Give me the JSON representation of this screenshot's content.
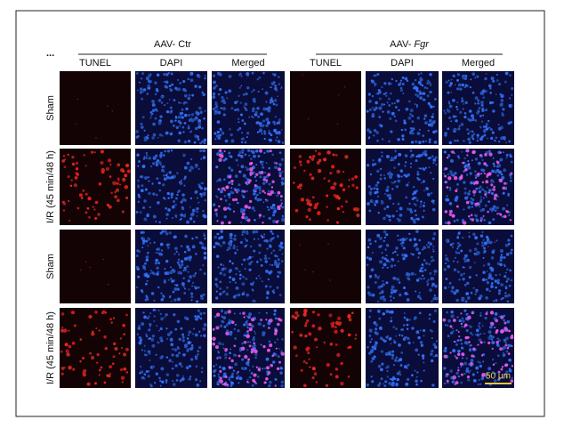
{
  "figure": {
    "marker": "...",
    "groups": [
      {
        "prefix": "AAV-",
        "name": "Ctr"
      },
      {
        "prefix": "AAV-",
        "name": "Fgr"
      }
    ],
    "columns": [
      "TUNEL",
      "DAPI",
      "Merged",
      "TUNEL",
      "DAPI",
      "Merged"
    ],
    "rows": [
      "Sham",
      "I/R (45 min/48 h)",
      "Sham",
      "I/R (45 min/48 h)"
    ],
    "scale_bar": "50 μm"
  }
}
